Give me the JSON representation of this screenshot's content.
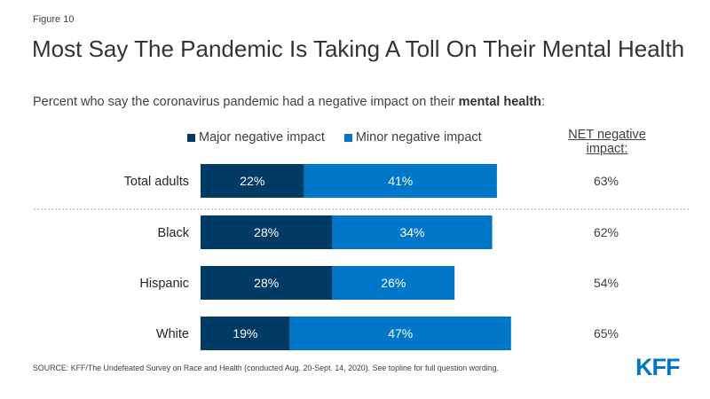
{
  "figure_label": "Figure 10",
  "title": "Most Say The Pandemic Is Taking A Toll On Their Mental Health",
  "subtitle_prefix": "Percent who say the coronavirus pandemic had a negative impact on their ",
  "subtitle_bold": "mental health",
  "subtitle_suffix": ":",
  "net_header": "NET negative impact:",
  "source": "SOURCE: KFF/The Undefeated Survey on Race and Health (conducted Aug. 20-Sept. 14, 2020). See topline for full question wording.",
  "logo": "KFF",
  "colors": {
    "major": "#003b66",
    "minor": "#0077c8"
  },
  "chart_data": {
    "type": "bar",
    "orientation": "horizontal",
    "stacked": true,
    "title": "Most Say The Pandemic Is Taking A Toll On Their Mental Health",
    "categories": [
      "Total adults",
      "Black",
      "Hispanic",
      "White"
    ],
    "series": [
      {
        "name": "Major negative impact",
        "values": [
          22,
          28,
          28,
          19
        ],
        "labels": [
          "22%",
          "28%",
          "28%",
          "19%"
        ]
      },
      {
        "name": "Minor negative impact",
        "values": [
          41,
          34,
          26,
          47
        ],
        "labels": [
          "41%",
          "34%",
          "26%",
          "47%"
        ]
      }
    ],
    "net": {
      "name": "NET negative impact",
      "values": [
        63,
        62,
        54,
        65
      ],
      "labels": [
        "63%",
        "62%",
        "54%",
        "65%"
      ]
    },
    "separator_after": "Total adults",
    "xlim": [
      0,
      100
    ],
    "xlabel": "",
    "ylabel": "",
    "grid": false,
    "legend": "top"
  }
}
